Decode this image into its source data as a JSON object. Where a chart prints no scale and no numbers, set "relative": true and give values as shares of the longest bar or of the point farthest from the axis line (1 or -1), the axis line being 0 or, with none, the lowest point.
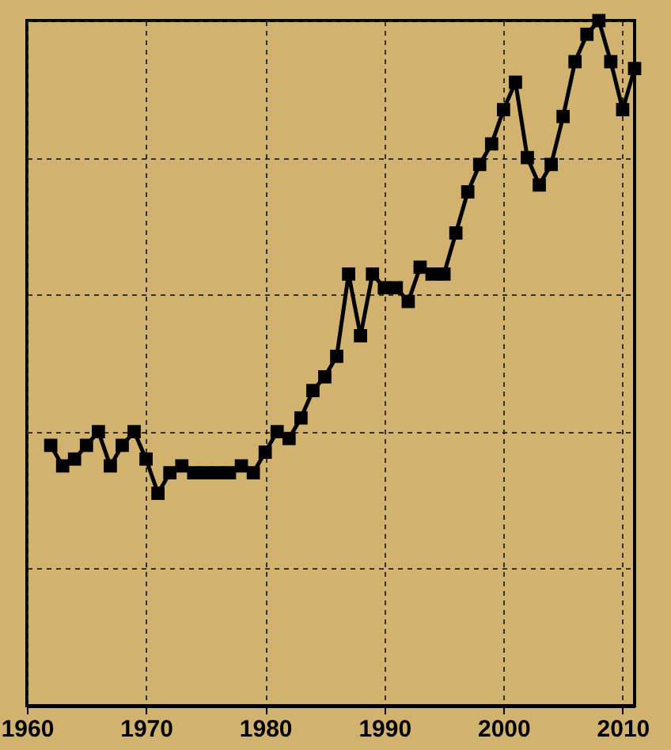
{
  "chart_data": {
    "type": "line",
    "relative": true,
    "grid": true,
    "marker": "square",
    "line_style": "solid",
    "xlim": [
      1960,
      2011
    ],
    "xticks": [
      1960,
      1970,
      1980,
      1990,
      2000,
      2010
    ],
    "x": [
      1962,
      1963,
      1964,
      1965,
      1966,
      1967,
      1968,
      1969,
      1970,
      1971,
      1972,
      1973,
      1974,
      1975,
      1976,
      1977,
      1978,
      1979,
      1980,
      1981,
      1982,
      1983,
      1984,
      1985,
      1986,
      1987,
      1988,
      1989,
      1990,
      1991,
      1992,
      1993,
      1994,
      1995,
      1996,
      1997,
      1998,
      1999,
      2000,
      2001,
      2002,
      2003,
      2004,
      2005,
      2006,
      2007,
      2008,
      2009,
      2010,
      2011
    ],
    "series": [
      {
        "color": "#000000",
        "values": [
          0.38,
          0.35,
          0.36,
          0.38,
          0.4,
          0.35,
          0.38,
          0.4,
          0.36,
          0.31,
          0.34,
          0.35,
          0.34,
          0.34,
          0.34,
          0.34,
          0.35,
          0.34,
          0.37,
          0.4,
          0.39,
          0.42,
          0.46,
          0.48,
          0.51,
          0.63,
          0.54,
          0.63,
          0.61,
          0.61,
          0.59,
          0.64,
          0.63,
          0.63,
          0.69,
          0.75,
          0.79,
          0.82,
          0.87,
          0.91,
          0.8,
          0.76,
          0.79,
          0.86,
          0.94,
          0.98,
          1,
          0.94,
          0.87,
          0.93
        ]
      }
    ]
  }
}
